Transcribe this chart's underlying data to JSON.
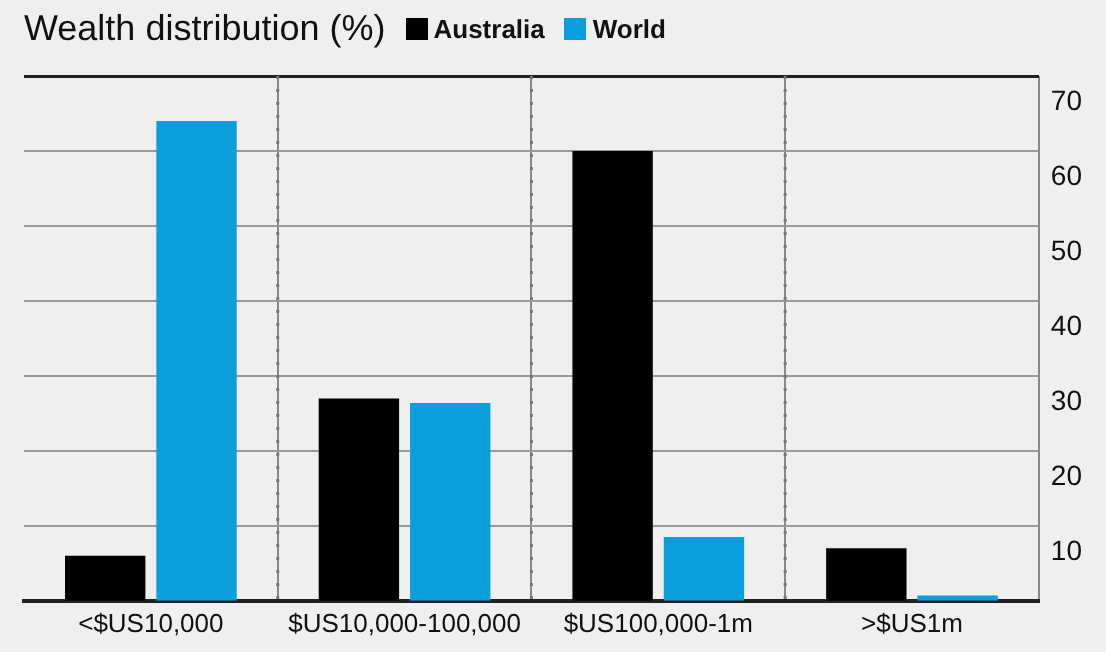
{
  "chart_data": {
    "type": "bar",
    "title": "Wealth distribution (%)",
    "categories": [
      "<$US10,000",
      "$US10,000-100,000",
      "$US100,000-1m",
      ">$US1m"
    ],
    "series": [
      {
        "name": "Australia",
        "color": "#000000",
        "values": [
          6,
          27,
          60,
          7
        ]
      },
      {
        "name": "World",
        "color": "#0a9fdc",
        "values": [
          64,
          26.4,
          8.5,
          0.7
        ]
      }
    ],
    "ylim": [
      0,
      70
    ],
    "yticks": [
      10,
      20,
      30,
      40,
      50,
      60,
      70
    ],
    "grid": true,
    "legend": "top left"
  }
}
